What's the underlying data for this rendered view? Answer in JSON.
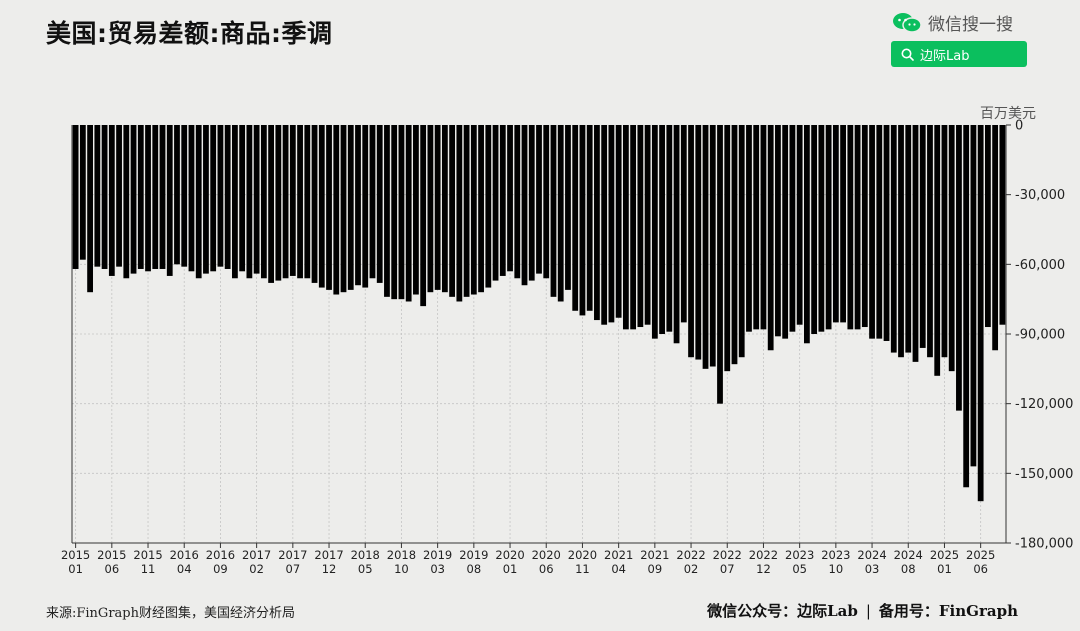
{
  "title": "美国:贸易差额:商品:季调",
  "wechat": {
    "label": "微信搜一搜",
    "search_label": "边际Lab"
  },
  "footer": {
    "source": "来源:FinGraph财经图集，美国经济分析局",
    "account_prefix": "微信公众号：边际Lab",
    "separator": "|",
    "backup": "备用号：FinGraph"
  },
  "colors": {
    "bar": "#000000",
    "accent": "#0bbf5e",
    "background": "#ededeb"
  },
  "chart_data": {
    "type": "bar",
    "unit_label": "百万美元",
    "x_tick_labels": [
      [
        "2015",
        "01"
      ],
      [
        "2015",
        "06"
      ],
      [
        "2015",
        "11"
      ],
      [
        "2016",
        "04"
      ],
      [
        "2016",
        "09"
      ],
      [
        "2017",
        "02"
      ],
      [
        "2017",
        "07"
      ],
      [
        "2017",
        "12"
      ],
      [
        "2018",
        "05"
      ],
      [
        "2018",
        "10"
      ],
      [
        "2019",
        "03"
      ],
      [
        "2019",
        "08"
      ],
      [
        "2020",
        "01"
      ],
      [
        "2020",
        "06"
      ],
      [
        "2020",
        "11"
      ],
      [
        "2021",
        "04"
      ],
      [
        "2021",
        "09"
      ],
      [
        "2022",
        "02"
      ],
      [
        "2022",
        "07"
      ],
      [
        "2022",
        "12"
      ],
      [
        "2023",
        "05"
      ],
      [
        "2023",
        "10"
      ],
      [
        "2024",
        "03"
      ],
      [
        "2024",
        "08"
      ],
      [
        "2025",
        "01"
      ],
      [
        "2025",
        "06"
      ]
    ],
    "y_ticks": [
      0,
      -30000,
      -60000,
      -90000,
      -120000,
      -150000,
      -180000
    ],
    "y_tick_labels": [
      "0",
      "-30,000",
      "-60,000",
      "-90,000",
      "-120,000",
      "-150,000",
      "-180,000"
    ],
    "ylim": [
      -180000,
      0
    ],
    "grid": true,
    "start": "2015-01",
    "values": [
      -62000,
      -58000,
      -72000,
      -61000,
      -62000,
      -65000,
      -61000,
      -66000,
      -64000,
      -62000,
      -63000,
      -62000,
      -62000,
      -65000,
      -60000,
      -61000,
      -63000,
      -66000,
      -64000,
      -63000,
      -61000,
      -62000,
      -66000,
      -63000,
      -66000,
      -64000,
      -66000,
      -68000,
      -67000,
      -66000,
      -65000,
      -66000,
      -66000,
      -68000,
      -70000,
      -71000,
      -73000,
      -72000,
      -71000,
      -69000,
      -70000,
      -66000,
      -68000,
      -74000,
      -75000,
      -75000,
      -76000,
      -73000,
      -78000,
      -72000,
      -71000,
      -72000,
      -74000,
      -76000,
      -74000,
      -73000,
      -72000,
      -70000,
      -67000,
      -65000,
      -63000,
      -66000,
      -69000,
      -67000,
      -64000,
      -66000,
      -74000,
      -76000,
      -71000,
      -80000,
      -82000,
      -80000,
      -84000,
      -86000,
      -85000,
      -83000,
      -88000,
      -88000,
      -87000,
      -86000,
      -92000,
      -90000,
      -89000,
      -94000,
      -85000,
      -100000,
      -101000,
      -105000,
      -104000,
      -120000,
      -106000,
      -103000,
      -100000,
      -89000,
      -88000,
      -88000,
      -97000,
      -91000,
      -92000,
      -89000,
      -86000,
      -94000,
      -90000,
      -89000,
      -88000,
      -85000,
      -85000,
      -88000,
      -88000,
      -87000,
      -92000,
      -92000,
      -93000,
      -98000,
      -100000,
      -98000,
      -102000,
      -96000,
      -100000,
      -108000,
      -100000,
      -106000,
      -123000,
      -156000,
      -147000,
      -162000,
      -87000,
      -97000,
      -86000
    ]
  }
}
